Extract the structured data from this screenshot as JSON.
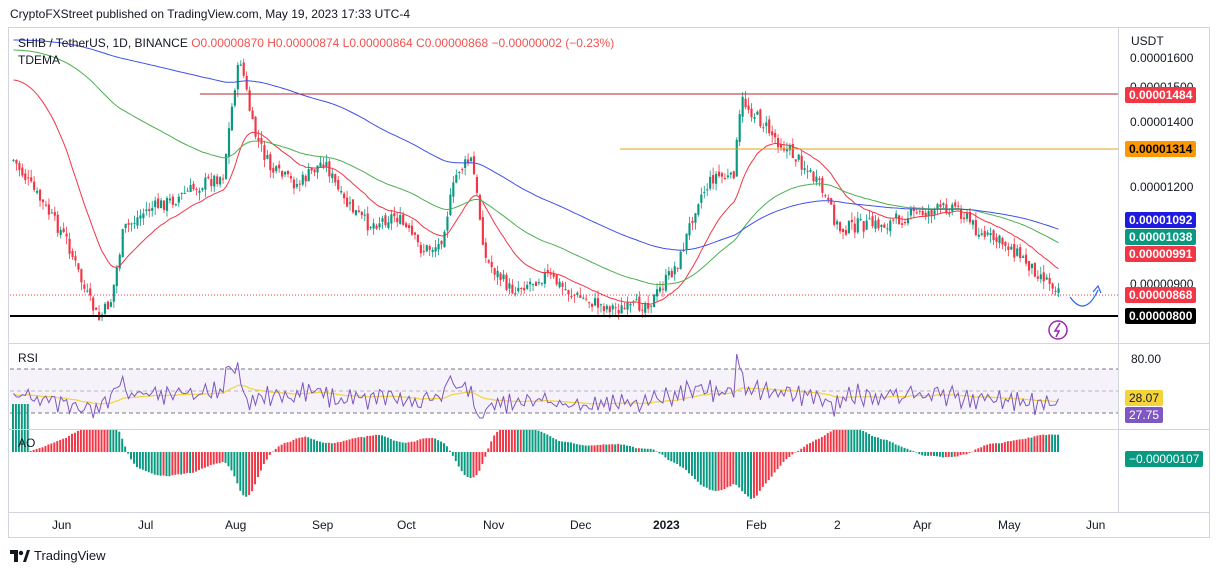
{
  "header": {
    "text": "CryptoFXStreet published on TradingView.com, May 19, 2023 17:33 UTC-4"
  },
  "legend": {
    "symbol": "SHIB / TetherUS, 1D, BINANCE",
    "ohlc": "O0.00000870  H0.00000874  L0.00000864  C0.00000868  −0.00000002 (−0.23%)",
    "indicator": "TDEMA"
  },
  "price_axis": {
    "currency": "USDT",
    "labels": [
      "0.00001600",
      "0.00001500",
      "0.00001400",
      "0.00001200",
      "0.00000900"
    ]
  },
  "price_tags": {
    "resistance_high": {
      "value": "0.00001484",
      "color": "#f23645"
    },
    "resistance_mid": {
      "value": "0.00001314",
      "color": "#ff9800"
    },
    "ema_blue": {
      "value": "0.00001092",
      "color": "#1f1ae0"
    },
    "ema_green": {
      "value": "0.00001038",
      "color": "#089981"
    },
    "ema_red": {
      "value": "0.00000991",
      "color": "#f23645"
    },
    "last_price": {
      "value": "0.00000868",
      "color": "#f23645"
    },
    "support": {
      "value": "0.00000800",
      "color": "#000000"
    }
  },
  "rsi": {
    "title": "RSI",
    "level_label": "80.00",
    "ma_value": "28.07",
    "rsi_value": "27.75",
    "ma_color": "#f5d33b",
    "rsi_color": "#7e57c2"
  },
  "ao": {
    "title": "AO",
    "value": "−0.00000107",
    "color": "#089981"
  },
  "time_axis": [
    "Jun",
    "Jul",
    "Aug",
    "Sep",
    "Oct",
    "Nov",
    "Dec",
    "2023",
    "Feb",
    "2",
    "Apr",
    "May",
    "Jun"
  ],
  "footer": {
    "brand": "TradingView"
  }
}
